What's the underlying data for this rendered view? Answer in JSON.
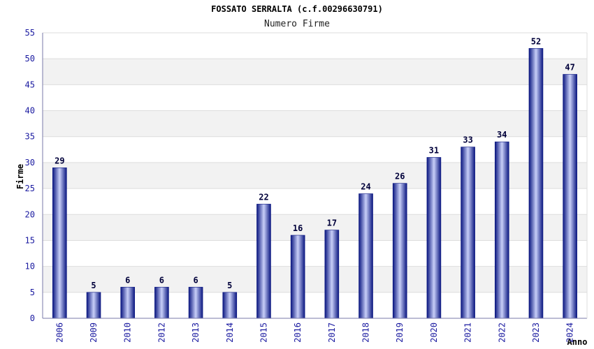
{
  "colors": {
    "band_light": "#ffffff",
    "band_dark": "#f2f2f2",
    "grid": "#dddddd",
    "axis": "#7a7aa8",
    "bar_dark": "#0a1680",
    "bar_light": "#c8cff8",
    "tick_text": "#1a1aa0"
  },
  "chart_data": {
    "type": "bar",
    "title": "FOSSATO SERRALTA (c.f.00296630791)",
    "subtitle": "Numero Firme",
    "xlabel": "Anno",
    "ylabel": "Firme",
    "ylim": [
      0,
      55
    ],
    "yticks": [
      0,
      5,
      10,
      15,
      20,
      25,
      30,
      35,
      40,
      45,
      50,
      55
    ],
    "grid": true,
    "categories": [
      "2006",
      "2009",
      "2010",
      "2012",
      "2013",
      "2014",
      "2015",
      "2016",
      "2017",
      "2018",
      "2019",
      "2020",
      "2021",
      "2022",
      "2023",
      "2024"
    ],
    "values": [
      29,
      5,
      6,
      6,
      6,
      5,
      22,
      16,
      17,
      24,
      26,
      31,
      33,
      34,
      52,
      47
    ],
    "data_labels": [
      "29",
      "5",
      "6",
      "6",
      "6",
      "5",
      "22",
      "16",
      "17",
      "24",
      "26",
      "31",
      "33",
      "34",
      "52",
      "47"
    ]
  }
}
